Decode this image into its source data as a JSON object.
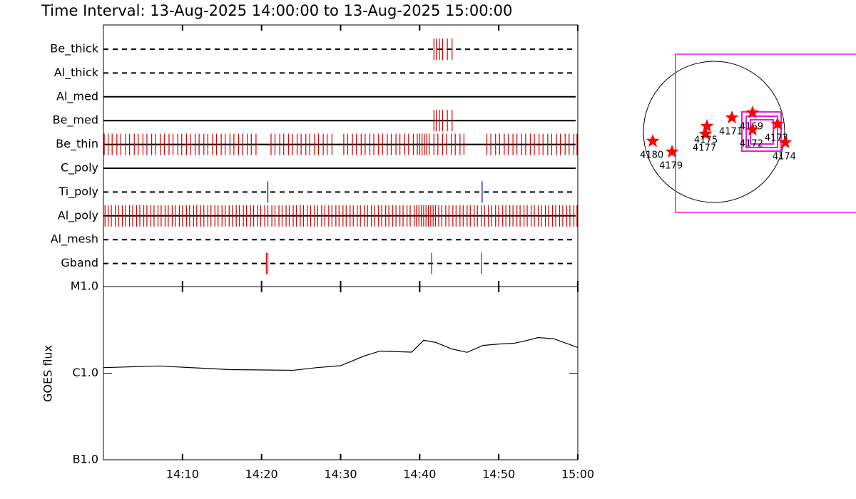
{
  "title": "Time Interval: 13-Aug-2025 14:00:00 to 13-Aug-2025 15:00:00",
  "chart_data": [
    {
      "type": "event",
      "xlim": [
        0,
        60
      ],
      "series": [
        {
          "name": "Be_thick",
          "dashed": true,
          "color": "#cc0000",
          "values": [
            41.8,
            42.1,
            42.5,
            42.9,
            43.5,
            44.1
          ]
        },
        {
          "name": "Al_thick",
          "dashed": true,
          "color": "#cc0000",
          "values": []
        },
        {
          "name": "Al_med",
          "dashed": false,
          "color": "#cc0000",
          "values": []
        },
        {
          "name": "Be_med",
          "dashed": false,
          "color": "#cc0000",
          "values": [
            41.8,
            42.1,
            42.5,
            42.9,
            43.5,
            44.1
          ]
        },
        {
          "name": "Be_thin",
          "dashed": false,
          "color": "#cc0000",
          "values": [
            0.1,
            0.6,
            1.1,
            1.7,
            2.2,
            2.8,
            3.3,
            3.9,
            4.4,
            5.0,
            5.5,
            6.1,
            6.6,
            7.2,
            7.7,
            8.3,
            8.8,
            9.4,
            9.9,
            10.5,
            11.0,
            11.6,
            12.1,
            12.7,
            13.2,
            13.8,
            14.3,
            14.9,
            15.4,
            16.0,
            16.5,
            17.1,
            17.6,
            18.2,
            18.7,
            19.3,
            21.2,
            21.7,
            22.3,
            22.8,
            23.4,
            23.9,
            24.5,
            25.0,
            25.6,
            26.1,
            26.7,
            27.2,
            27.8,
            28.3,
            28.9,
            30.4,
            30.9,
            31.5,
            32.0,
            32.6,
            33.1,
            33.7,
            34.2,
            34.8,
            35.3,
            35.9,
            36.4,
            37.0,
            37.5,
            38.1,
            38.6,
            39.2,
            39.7,
            40.0,
            40.3,
            40.6,
            40.9,
            41.2,
            41.8,
            42.3,
            42.9,
            43.4,
            44.0,
            44.5,
            45.1,
            45.6,
            48.5,
            49.0,
            49.6,
            50.1,
            50.7,
            51.2,
            51.8,
            52.3,
            52.9,
            53.4,
            54.0,
            54.5,
            55.1,
            55.6,
            56.2,
            56.7,
            57.3,
            57.8,
            58.4,
            58.9,
            59.5,
            59.9
          ]
        },
        {
          "name": "C_poly",
          "dashed": false,
          "color": "#cc0000",
          "values": []
        },
        {
          "name": "Ti_poly",
          "dashed": true,
          "color": "#0000aa",
          "values": [
            20.8,
            47.9
          ]
        },
        {
          "name": "Al_poly",
          "dashed": false,
          "color": "#cc0000",
          "values": [
            0.2,
            0.6,
            1.0,
            1.5,
            1.9,
            2.4,
            2.8,
            3.3,
            3.7,
            4.2,
            4.6,
            5.1,
            5.5,
            6.0,
            6.4,
            6.9,
            7.3,
            7.8,
            8.2,
            8.7,
            9.1,
            9.6,
            10.0,
            10.5,
            10.9,
            11.4,
            11.8,
            12.3,
            12.7,
            13.2,
            13.6,
            14.1,
            14.5,
            15.0,
            15.4,
            15.9,
            16.3,
            16.8,
            17.2,
            17.7,
            18.1,
            18.6,
            19.0,
            19.5,
            19.9,
            20.4,
            20.8,
            21.3,
            21.7,
            22.2,
            22.6,
            23.1,
            23.5,
            24.0,
            24.4,
            24.9,
            25.3,
            25.8,
            26.2,
            26.7,
            27.1,
            27.6,
            28.0,
            28.5,
            28.9,
            29.4,
            29.8,
            30.3,
            30.7,
            31.2,
            31.6,
            32.1,
            32.5,
            33.0,
            33.4,
            33.9,
            34.3,
            34.8,
            35.2,
            35.7,
            36.1,
            36.6,
            37.0,
            37.5,
            37.9,
            38.4,
            38.8,
            39.3,
            39.6,
            39.9,
            40.2,
            40.5,
            40.8,
            41.1,
            41.4,
            41.7,
            42.0,
            42.4,
            42.8,
            43.3,
            43.7,
            44.2,
            44.6,
            45.1,
            45.5,
            46.0,
            46.4,
            46.9,
            47.3,
            47.8,
            48.2,
            48.7,
            49.1,
            49.6,
            50.0,
            50.5,
            50.9,
            51.4,
            51.8,
            52.3,
            52.7,
            53.2,
            53.6,
            54.1,
            54.5,
            55.0,
            55.4,
            55.9,
            56.3,
            56.8,
            57.2,
            57.7,
            58.1,
            58.6,
            59.0,
            59.5,
            59.9
          ]
        },
        {
          "name": "Al_mesh",
          "dashed": true,
          "color": "#cc0000",
          "values": []
        },
        {
          "name": "Gband",
          "dashed": true,
          "color": "#cc0000",
          "values": [
            20.6,
            20.8,
            41.5,
            47.8
          ]
        }
      ]
    },
    {
      "type": "line",
      "ylabel": "GOES flux",
      "log_y": true,
      "color": "#000000",
      "x": [
        0,
        7,
        16,
        24,
        27,
        30,
        33,
        35,
        39,
        40.5,
        42,
        44,
        46,
        48,
        50,
        52,
        54,
        55,
        57,
        60
      ],
      "values": [
        1.16e-06,
        1.21e-06,
        1.1e-06,
        1.08e-06,
        1.16e-06,
        1.22e-06,
        1.58e-06,
        1.8e-06,
        1.75e-06,
        2.4e-06,
        2.27e-06,
        1.91e-06,
        1.74e-06,
        2.09e-06,
        2.17e-06,
        2.22e-06,
        2.44e-06,
        2.58e-06,
        2.49e-06,
        1.98e-06
      ],
      "xlim": [
        0,
        60
      ],
      "xticks": [
        {
          "value": 10,
          "label": "14:10"
        },
        {
          "value": 20,
          "label": "14:20"
        },
        {
          "value": 30,
          "label": "14:30"
        },
        {
          "value": 40,
          "label": "14:40"
        },
        {
          "value": 50,
          "label": "14:50"
        },
        {
          "value": 60,
          "label": "15:00"
        }
      ],
      "ylim": [
        1e-07,
        1e-05
      ],
      "yticks": [
        {
          "value": 1e-05,
          "label": "M1.0"
        },
        {
          "value": 1e-06,
          "label": "C1.0"
        },
        {
          "value": 1e-07,
          "label": "B1.0"
        }
      ]
    },
    {
      "type": "scatter",
      "color": "#ff0000",
      "xlim": [
        -1050,
        1050
      ],
      "ylim": [
        -1050,
        1050
      ],
      "x": [
        -835,
        -573,
        -117,
        -97,
        243,
        524,
        524,
        864,
        971
      ],
      "values": [
        -126,
        -272,
        -29,
        78,
        194,
        262,
        29,
        107,
        -146
      ],
      "labels": [
        "4180",
        "4179",
        "4177",
        "4175",
        "4171",
        "4169",
        "4172",
        "4173",
        "4174"
      ]
    }
  ]
}
